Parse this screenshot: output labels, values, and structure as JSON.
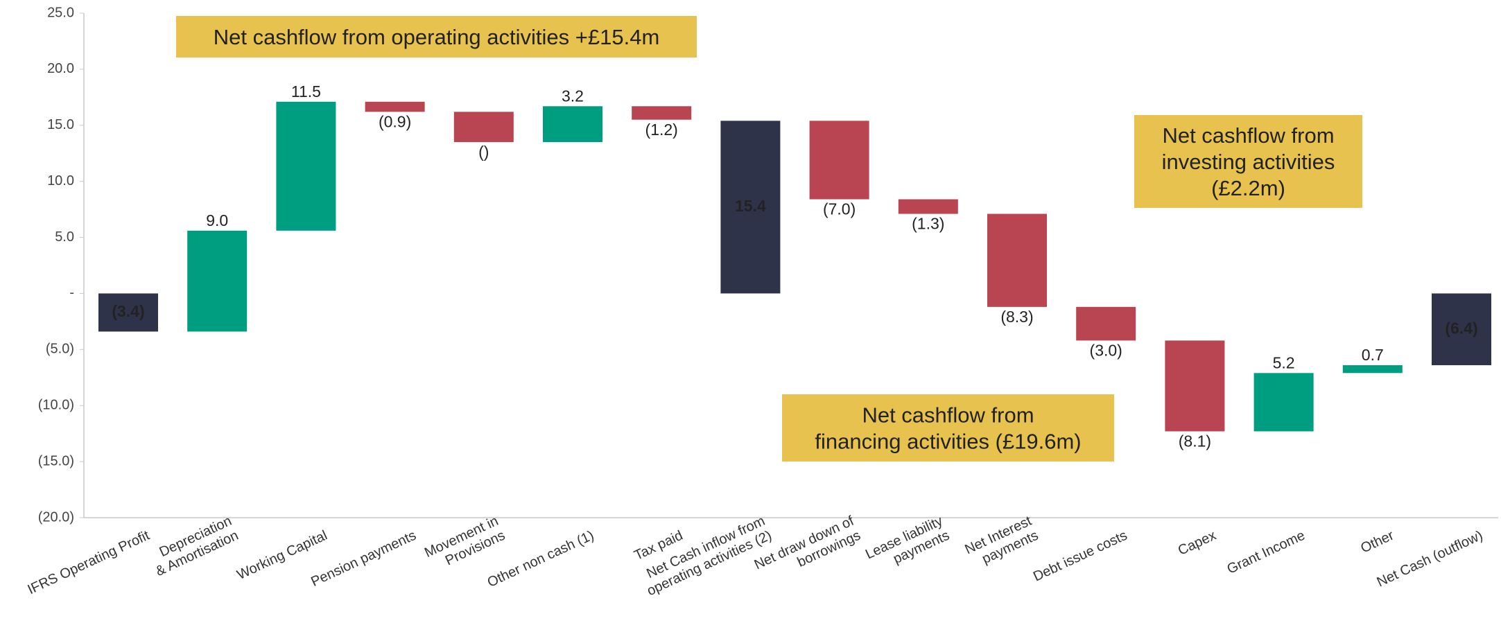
{
  "chart_data": {
    "type": "waterfall",
    "categories": [
      [
        "IFRS Operating Profit"
      ],
      [
        "Depreciation",
        "& Amortisation"
      ],
      [
        "Working Capital"
      ],
      [
        "Pension payments"
      ],
      [
        "Movement in",
        "Provisions"
      ],
      [
        "Other non cash (1)"
      ],
      [
        "Tax paid"
      ],
      [
        "Net Cash inflow from",
        "operating activities (2)"
      ],
      [
        "Net draw down of",
        "borrowings"
      ],
      [
        "Lease liability",
        "payments"
      ],
      [
        "Net Interest",
        "payments"
      ],
      [
        "Debt issue costs"
      ],
      [
        "Capex"
      ],
      [
        "Grant Income"
      ],
      [
        "Other"
      ],
      [
        "Net Cash (outflow)"
      ]
    ],
    "values": [
      -3.4,
      9.0,
      11.5,
      -0.9,
      -2.7,
      3.2,
      -1.2,
      15.4,
      -7.0,
      -1.3,
      -8.3,
      -3.0,
      -8.1,
      5.2,
      0.7,
      -6.4
    ],
    "value_labels": [
      "(3.4)",
      "9.0",
      "11.5",
      "(0.9)",
      "()",
      "3.2",
      "(1.2)",
      "15.4",
      "(7.0)",
      "(1.3)",
      "(8.3)",
      "(3.0)",
      "(8.1)",
      "5.2",
      "0.7",
      "(6.4)"
    ],
    "kinds": [
      "total",
      "delta",
      "delta",
      "delta",
      "delta",
      "delta",
      "delta",
      "total",
      "delta",
      "delta",
      "delta",
      "delta",
      "delta",
      "delta",
      "delta",
      "total"
    ],
    "colors": {
      "total": "#2e3349",
      "increase": "#009e80",
      "decrease": "#b94452"
    },
    "ylim": [
      -20,
      25
    ],
    "yticks": [
      {
        "value": -20,
        "label": "(20.0)"
      },
      {
        "value": -15,
        "label": "(15.0)"
      },
      {
        "value": -10,
        "label": "(10.0)"
      },
      {
        "value": -5,
        "label": "(5.0)"
      },
      {
        "value": 0,
        "label": "-"
      },
      {
        "value": 5,
        "label": "5.0"
      },
      {
        "value": 10,
        "label": "10.0"
      },
      {
        "value": 15,
        "label": "15.0"
      },
      {
        "value": 20,
        "label": "20.0"
      },
      {
        "value": 25,
        "label": "25.0"
      }
    ],
    "annotations": [
      {
        "lines": [
          "Net cashflow from operating activities +£15.4m"
        ],
        "color": "#e8c24f"
      },
      {
        "lines": [
          "Net cashflow from",
          "investing activities",
          "(£2.2m)"
        ],
        "color": "#e8c24f"
      },
      {
        "lines": [
          "Net cashflow from",
          "financing activities (£19.6m)"
        ],
        "color": "#e8c24f"
      }
    ]
  }
}
